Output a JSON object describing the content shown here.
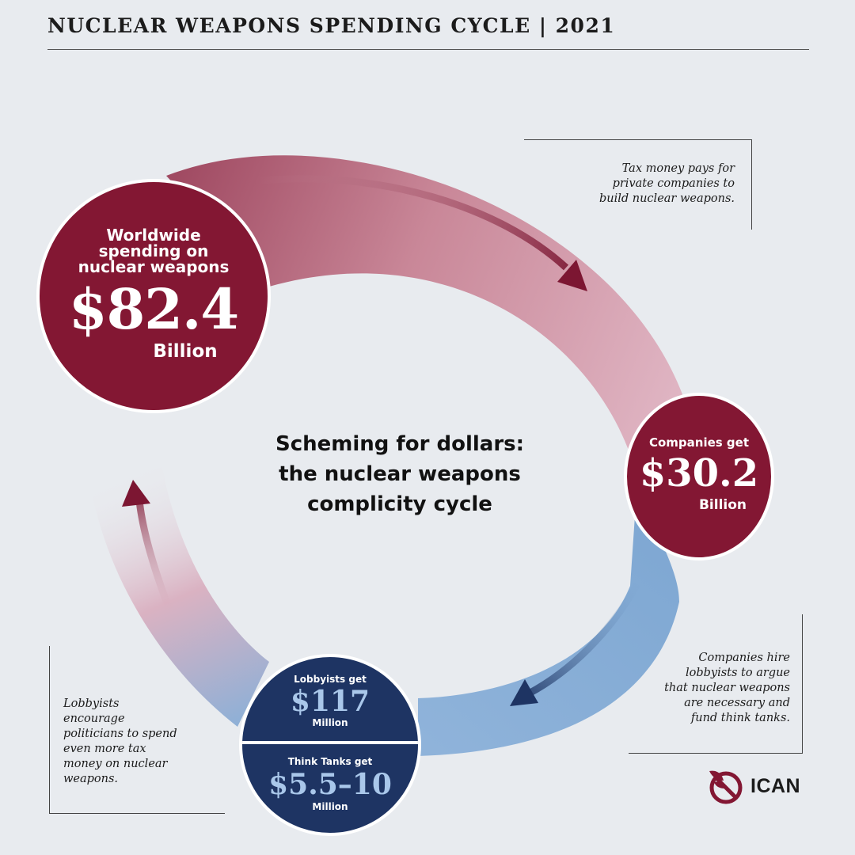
{
  "header": {
    "title": "NUCLEAR WEAPONS SPENDING CYCLE | 2021"
  },
  "center": {
    "line1": "Scheming for dollars:",
    "line2": "the nuclear weapons",
    "line3": "complicity cycle"
  },
  "worldwide": {
    "label_line1": "Worldwide",
    "label_line2": "spending on",
    "label_line3": "nuclear weapons",
    "amount": "$82.4",
    "unit": "Billion"
  },
  "companies": {
    "label": "Companies get",
    "amount": "$30.2",
    "unit": "Billion"
  },
  "lobbyists": {
    "label": "Lobbyists get",
    "amount": "$117",
    "unit": "Million"
  },
  "think_tanks": {
    "label": "Think Tanks get",
    "amount": "$5.5–10",
    "unit": "Million"
  },
  "notes": {
    "tax": {
      "line1": "Tax money pays for",
      "line2": "private companies to",
      "line3": "build nuclear weapons."
    },
    "companies": {
      "line1": "Companies hire",
      "line2": "lobbyists to argue",
      "line3": "that nuclear weapons",
      "line4": "are necessary and",
      "line5": "fund think tanks."
    },
    "lobbyists": {
      "line1": "Lobbyists",
      "line2": "encourage",
      "line3": "politicians to spend",
      "line4": "even more tax",
      "line5": "money on nuclear",
      "line6": "weapons."
    }
  },
  "brand": {
    "name": "ICAN",
    "icon": "ican-logo-icon"
  },
  "colors": {
    "background": "#e8ebef",
    "crimson": "#831733",
    "pink": "#d9a9b8",
    "blue": "#7ea7d2",
    "navy": "#1e3463",
    "light_blue_text": "#a9c7ea"
  }
}
